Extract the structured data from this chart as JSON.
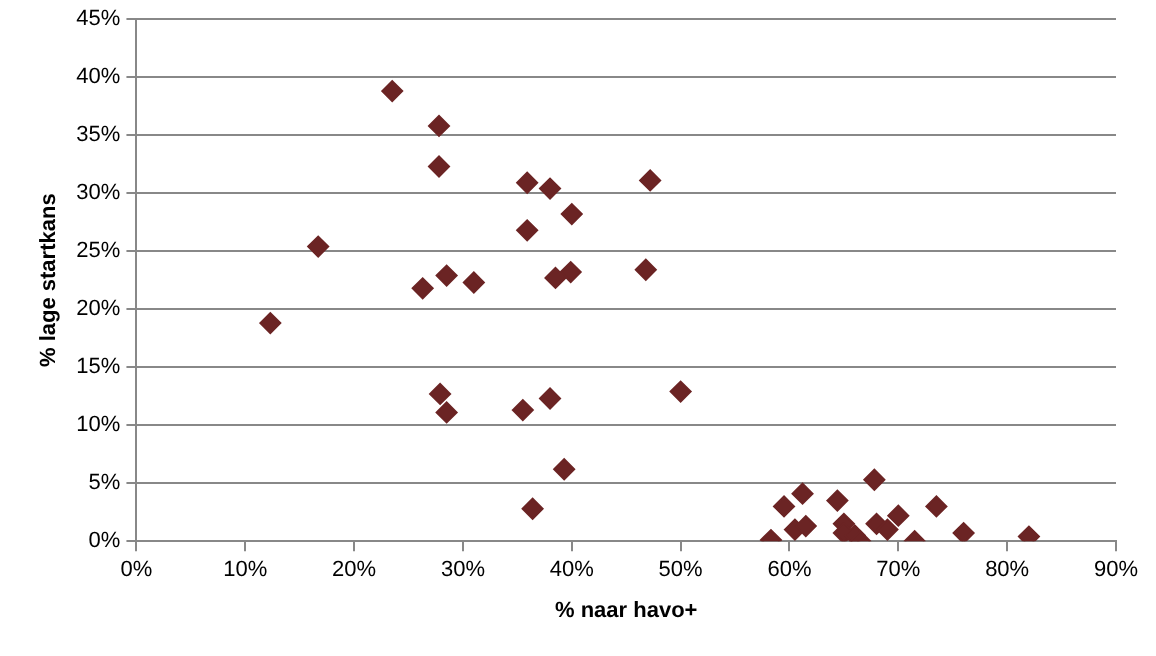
{
  "chart_data": {
    "type": "scatter",
    "xlabel": "% naar havo+",
    "ylabel": "% lage startkans",
    "x": [
      12.3,
      16.7,
      23.5,
      27.8,
      27.8,
      26.3,
      28.5,
      31.0,
      27.9,
      28.5,
      35.9,
      38.0,
      40.0,
      35.9,
      38.5,
      39.9,
      46.8,
      47.2,
      35.5,
      38.0,
      39.3,
      36.4,
      50.0,
      58.3,
      59.5,
      60.5,
      61.2,
      61.5,
      64.4,
      65.0,
      65.0,
      66.0,
      66.5,
      67.8,
      68.0,
      69.0,
      70.0,
      71.5,
      73.5,
      76.0,
      82.0
    ],
    "values": [
      18.8,
      25.4,
      38.8,
      35.8,
      32.3,
      21.8,
      22.9,
      22.3,
      12.7,
      11.1,
      30.9,
      30.4,
      28.2,
      26.8,
      22.7,
      23.2,
      23.4,
      31.1,
      11.3,
      12.3,
      6.2,
      2.8,
      12.9,
      0.1,
      3.0,
      1.0,
      4.1,
      1.3,
      3.5,
      1.5,
      0.7,
      0.5,
      0.0,
      5.3,
      1.5,
      1.0,
      2.2,
      0.0,
      3.0,
      0.7,
      0.4
    ],
    "color": "#6b2424",
    "marker": "diamond",
    "grid": "y",
    "legend": false,
    "xlim": [
      0,
      90
    ],
    "xticks": [
      {
        "value": 0,
        "label": "0%"
      },
      {
        "value": 10,
        "label": "10%"
      },
      {
        "value": 20,
        "label": "20%"
      },
      {
        "value": 30,
        "label": "30%"
      },
      {
        "value": 40,
        "label": "40%"
      },
      {
        "value": 50,
        "label": "50%"
      },
      {
        "value": 60,
        "label": "60%"
      },
      {
        "value": 70,
        "label": "70%"
      },
      {
        "value": 80,
        "label": "80%"
      },
      {
        "value": 90,
        "label": "90%"
      }
    ],
    "ylim": [
      0,
      45
    ],
    "yticks": [
      {
        "value": 0,
        "label": "0%"
      },
      {
        "value": 5,
        "label": "5%"
      },
      {
        "value": 10,
        "label": "10%"
      },
      {
        "value": 15,
        "label": "15%"
      },
      {
        "value": 20,
        "label": "20%"
      },
      {
        "value": 25,
        "label": "25%"
      },
      {
        "value": 30,
        "label": "30%"
      },
      {
        "value": 35,
        "label": "35%"
      },
      {
        "value": 40,
        "label": "40%"
      },
      {
        "value": 45,
        "label": "45%"
      }
    ]
  }
}
